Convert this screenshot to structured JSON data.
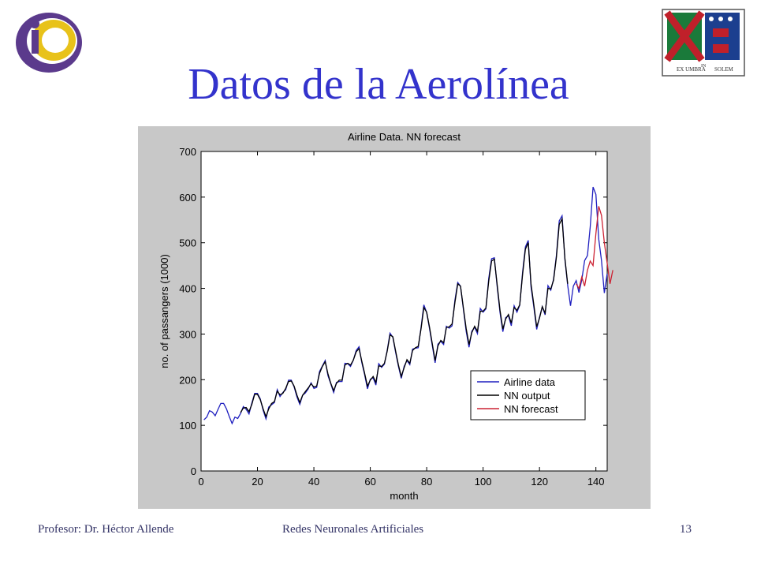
{
  "slide": {
    "title": "Datos de la Aerolínea",
    "footer_left": "Profesor: Dr. Héctor Allende",
    "footer_center": "Redes Neuronales Artificiales",
    "page_number": "13",
    "crest_motto_left": "EX UMBRA",
    "crest_motto_mid": "IN",
    "crest_motto_right": "SOLEM"
  },
  "colors": {
    "title": "#3333cc",
    "footer": "#333366",
    "chart_background": "#c8c8c8",
    "airline": "#1f1fbf",
    "nn_output": "#000000",
    "nn_forecast": "#cc2233"
  },
  "chart_data": {
    "type": "line",
    "title": "Airline Data.  NN forecast",
    "xlabel": "month",
    "ylabel": "no. of passangers (1000)",
    "xlim": [
      0,
      144
    ],
    "ylim": [
      0,
      700
    ],
    "xticks": [
      0,
      20,
      40,
      60,
      80,
      100,
      120,
      140
    ],
    "yticks": [
      0,
      100,
      200,
      300,
      400,
      500,
      600,
      700
    ],
    "grid": false,
    "legend_position": "lower-right",
    "x_start": 1,
    "series": [
      {
        "name": "Airline data",
        "color": "#1f1fbf",
        "values": [
          112,
          118,
          132,
          129,
          121,
          135,
          148,
          148,
          136,
          119,
          104,
          118,
          115,
          126,
          141,
          135,
          125,
          149,
          170,
          170,
          158,
          133,
          114,
          140,
          145,
          150,
          178,
          163,
          172,
          178,
          199,
          199,
          184,
          162,
          146,
          166,
          171,
          180,
          193,
          181,
          183,
          218,
          230,
          242,
          209,
          191,
          172,
          194,
          196,
          196,
          236,
          235,
          229,
          243,
          264,
          272,
          237,
          211,
          180,
          201,
          204,
          188,
          235,
          227,
          234,
          264,
          302,
          293,
          259,
          229,
          203,
          229,
          242,
          233,
          267,
          269,
          270,
          315,
          364,
          347,
          312,
          274,
          237,
          278,
          284,
          277,
          317,
          313,
          318,
          374,
          413,
          405,
          355,
          306,
          271,
          306,
          315,
          301,
          356,
          348,
          355,
          422,
          465,
          467,
          404,
          347,
          305,
          336,
          340,
          318,
          362,
          348,
          363,
          435,
          491,
          505,
          404,
          359,
          310,
          337,
          360,
          342,
          406,
          396,
          420,
          472,
          548,
          559,
          463,
          407,
          362,
          405,
          417,
          391,
          419,
          461,
          472,
          535,
          622,
          606,
          508,
          461,
          390,
          432
        ]
      },
      {
        "name": "NN output",
        "color": "#000000",
        "values": [
          null,
          null,
          null,
          null,
          null,
          null,
          null,
          null,
          null,
          null,
          null,
          null,
          null,
          128,
          138,
          139,
          130,
          146,
          168,
          168,
          156,
          136,
          119,
          136,
          148,
          152,
          175,
          167,
          170,
          181,
          196,
          197,
          186,
          166,
          150,
          166,
          174,
          182,
          191,
          184,
          186,
          214,
          229,
          239,
          213,
          192,
          176,
          192,
          199,
          199,
          232,
          236,
          232,
          243,
          261,
          268,
          240,
          214,
          186,
          199,
          207,
          194,
          230,
          229,
          236,
          262,
          298,
          294,
          262,
          232,
          207,
          226,
          244,
          236,
          264,
          270,
          273,
          312,
          358,
          348,
          315,
          278,
          242,
          274,
          286,
          281,
          314,
          316,
          322,
          369,
          410,
          405,
          358,
          312,
          277,
          303,
          317,
          306,
          350,
          350,
          357,
          416,
          460,
          464,
          408,
          352,
          311,
          333,
          343,
          324,
          358,
          352,
          364,
          430,
          486,
          500,
          410,
          364,
          316,
          335,
          360,
          346,
          400,
          399,
          418,
          468,
          540,
          552,
          466,
          410,
          null,
          null,
          null,
          null,
          null,
          null,
          null,
          null,
          null,
          null,
          null,
          null
        ]
      },
      {
        "name": "NN forecast",
        "color": "#cc2233",
        "values": [
          null,
          null,
          null,
          null,
          null,
          null,
          null,
          null,
          null,
          null,
          null,
          null,
          null,
          null,
          null,
          null,
          null,
          null,
          null,
          null,
          null,
          null,
          null,
          null,
          null,
          null,
          null,
          null,
          null,
          null,
          null,
          null,
          null,
          null,
          null,
          null,
          null,
          null,
          null,
          null,
          null,
          null,
          null,
          null,
          null,
          null,
          null,
          null,
          null,
          null,
          null,
          null,
          null,
          null,
          null,
          null,
          null,
          null,
          null,
          null,
          null,
          null,
          null,
          null,
          null,
          null,
          null,
          null,
          null,
          null,
          null,
          null,
          null,
          null,
          null,
          null,
          null,
          null,
          null,
          null,
          null,
          null,
          null,
          null,
          null,
          null,
          null,
          null,
          null,
          null,
          null,
          null,
          null,
          null,
          null,
          null,
          null,
          null,
          null,
          null,
          null,
          null,
          null,
          null,
          null,
          null,
          null,
          null,
          null,
          null,
          null,
          null,
          null,
          null,
          null,
          null,
          null,
          null,
          null,
          null,
          null,
          null,
          null,
          null,
          null,
          null,
          null,
          null,
          null,
          null,
          null,
          null,
          410,
          400,
          425,
          405,
          440,
          460,
          450,
          520,
          580,
          560,
          500,
          455,
          410,
          440
        ]
      }
    ]
  }
}
